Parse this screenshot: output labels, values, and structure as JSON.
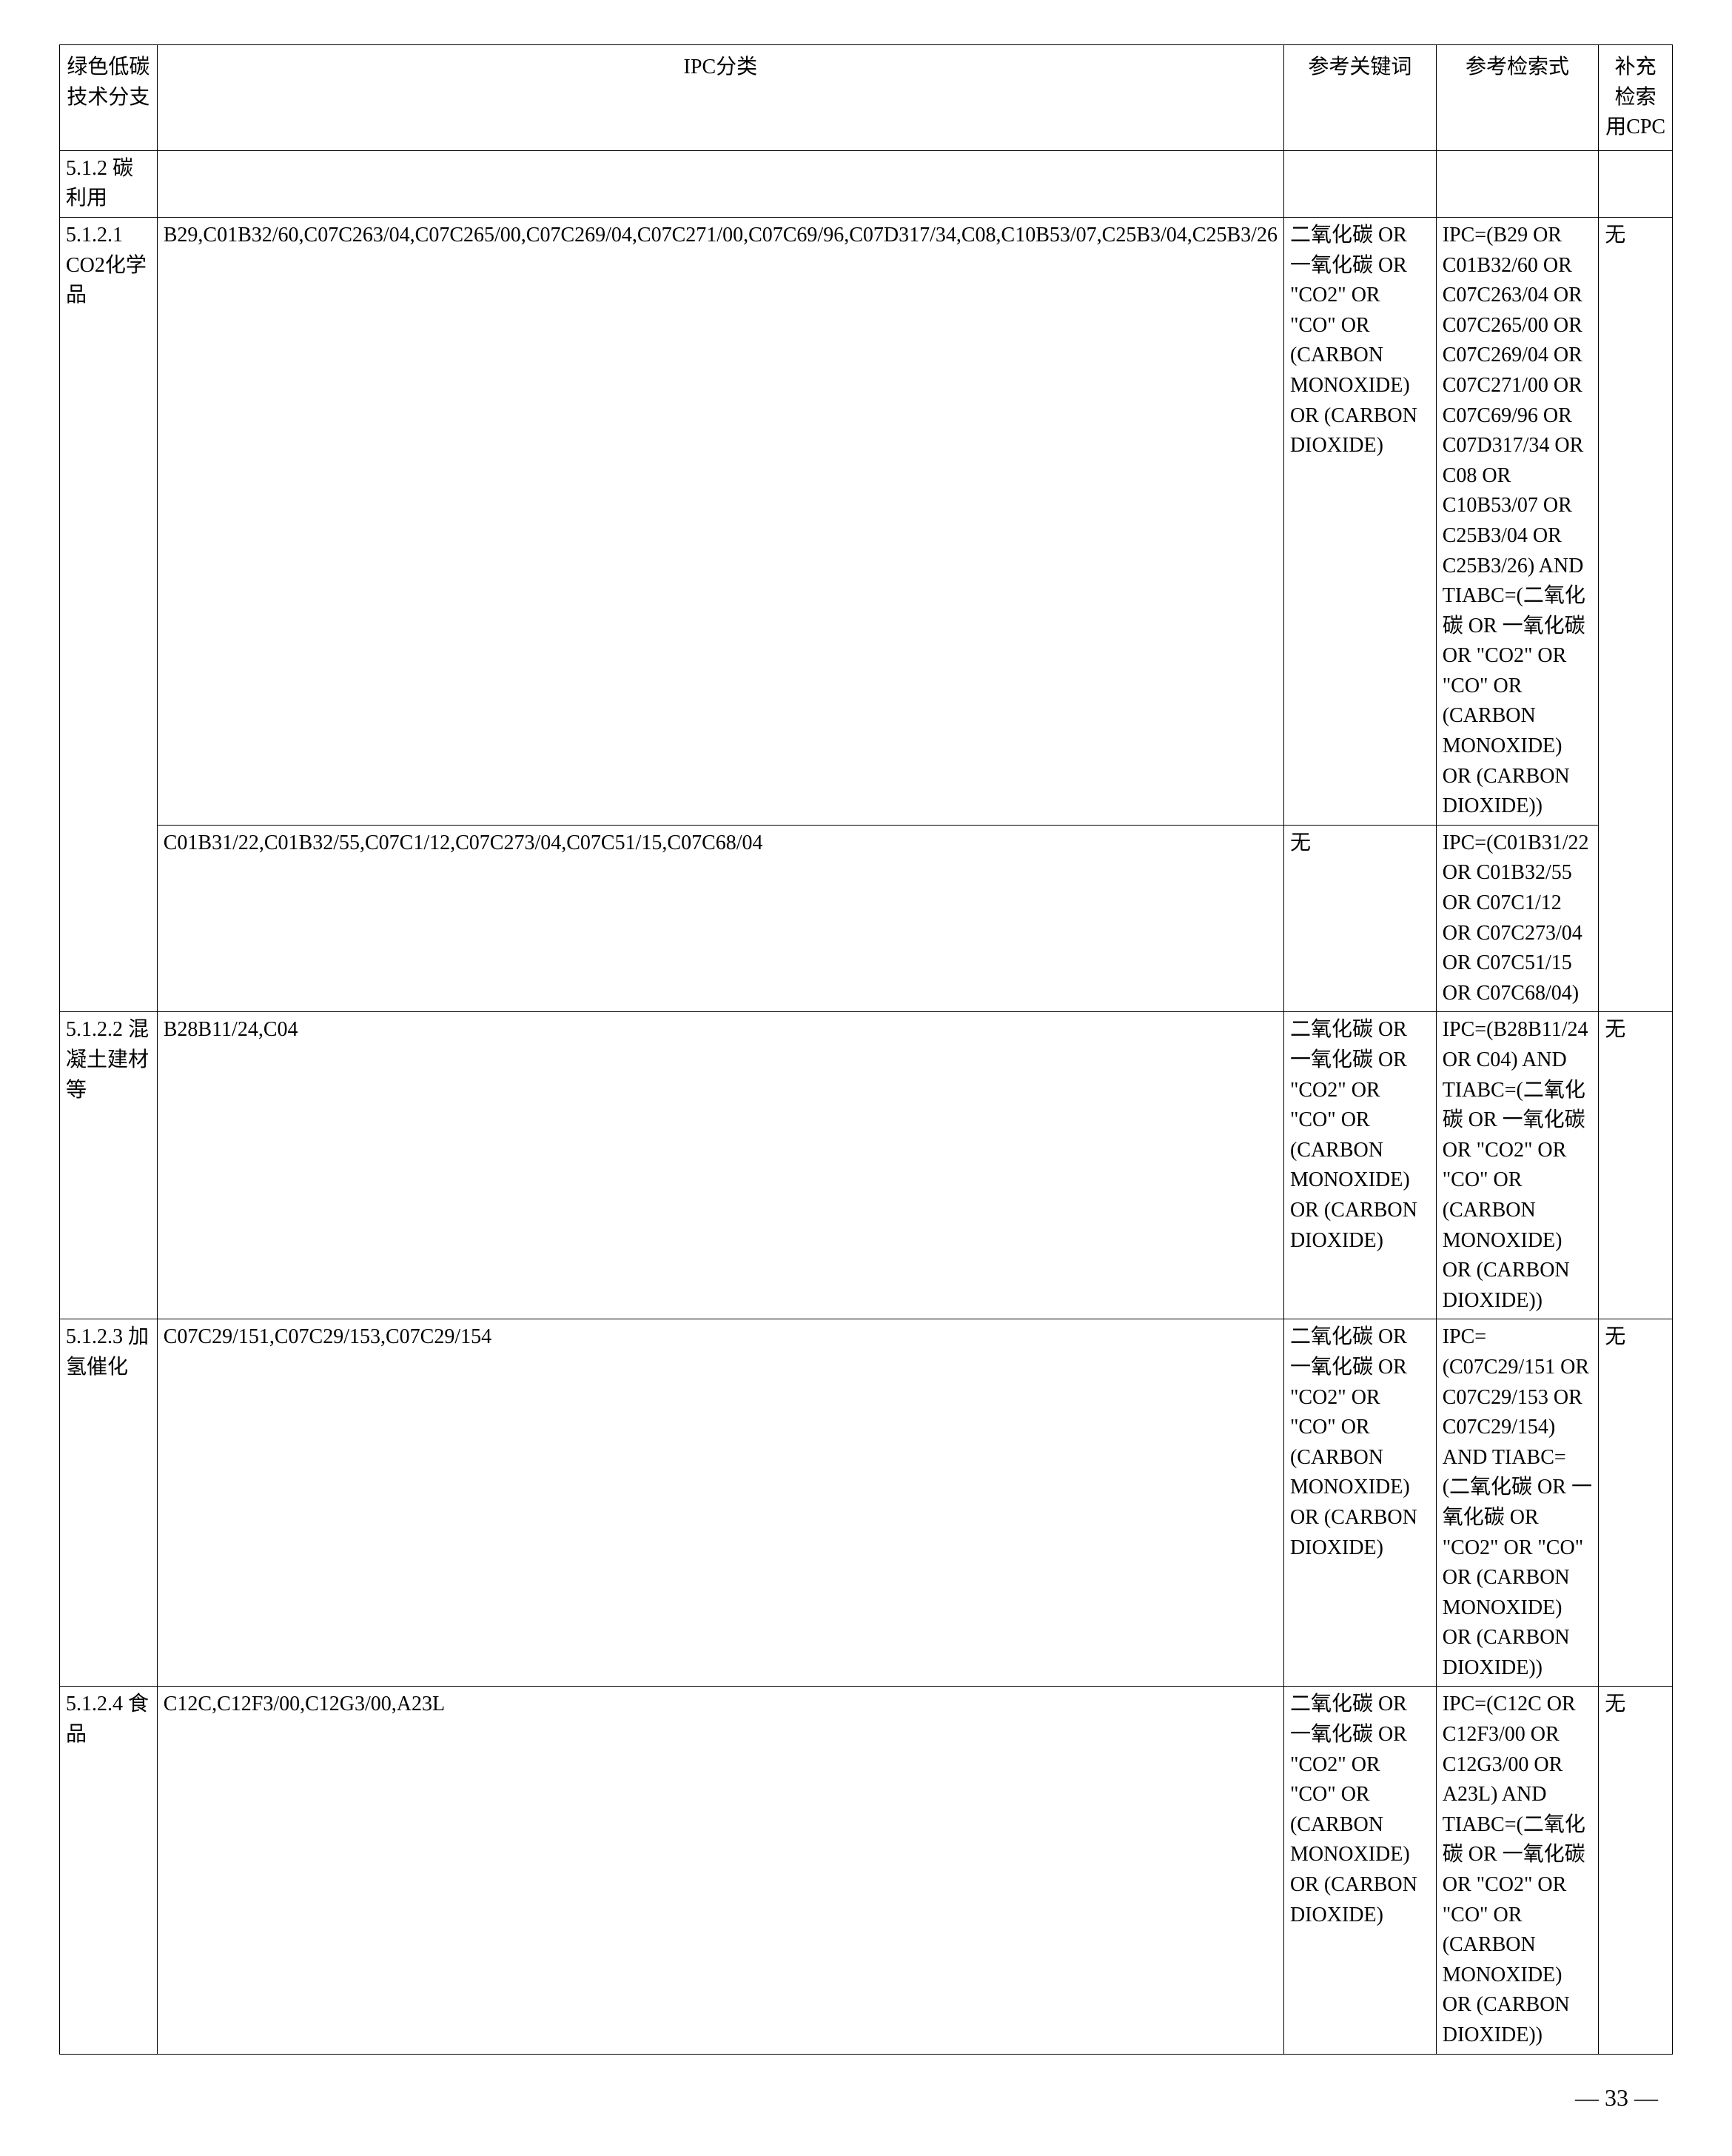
{
  "headers": {
    "branch": "绿色低碳技术分支",
    "ipc": "IPC分类",
    "keyword": "参考关键词",
    "search": "参考检索式",
    "cpc": "补充检索用CPC"
  },
  "section": {
    "id": "5.1.2  碳利用"
  },
  "rows": [
    {
      "branch": "5.1.2.1 CO2化学品",
      "ipc1": "B29,C01B32/60,C07C263/04,C07C265/00,C07C269/04,C07C271/00,C07C69/96,C07D317/34,C08,C10B53/07,C25B3/04,C25B3/26",
      "keyword1": "二氧化碳 OR 一氧化碳 OR \"CO2\" OR \"CO\" OR (CARBON MONOXIDE) OR (CARBON DIOXIDE)",
      "search1": "IPC=(B29 OR C01B32/60 OR C07C263/04 OR C07C265/00 OR C07C269/04 OR C07C271/00 OR C07C69/96 OR C07D317/34 OR C08 OR C10B53/07 OR C25B3/04 OR C25B3/26) AND TIABC=(二氧化碳 OR 一氧化碳 OR \"CO2\" OR \"CO\" OR (CARBON MONOXIDE) OR (CARBON DIOXIDE))",
      "cpc1": "无",
      "ipc2": "C01B31/22,C01B32/55,C07C1/12,C07C273/04,C07C51/15,C07C68/04",
      "keyword2": "无",
      "search2": "IPC=(C01B31/22 OR C01B32/55 OR C07C1/12 OR C07C273/04 OR C07C51/15 OR C07C68/04)"
    },
    {
      "branch": "5.1.2.2 混凝土建材等",
      "ipc": "B28B11/24,C04",
      "keyword": "二氧化碳 OR 一氧化碳 OR \"CO2\" OR \"CO\" OR (CARBON MONOXIDE) OR (CARBON DIOXIDE)",
      "search": "IPC=(B28B11/24 OR C04) AND TIABC=(二氧化碳 OR 一氧化碳 OR \"CO2\" OR \"CO\" OR (CARBON MONOXIDE) OR (CARBON DIOXIDE))",
      "cpc": "无"
    },
    {
      "branch": "5.1.2.3 加氢催化",
      "ipc": "C07C29/151,C07C29/153,C07C29/154",
      "keyword": "二氧化碳 OR 一氧化碳 OR \"CO2\" OR \"CO\" OR (CARBON MONOXIDE) OR (CARBON DIOXIDE)",
      "search": "IPC=(C07C29/151 OR C07C29/153 OR C07C29/154) AND TIABC=(二氧化碳 OR 一氧化碳 OR \"CO2\" OR \"CO\" OR (CARBON MONOXIDE) OR (CARBON DIOXIDE))",
      "cpc": "无"
    },
    {
      "branch": "5.1.2.4 食品",
      "ipc": "C12C,C12F3/00,C12G3/00,A23L",
      "keyword": "二氧化碳 OR 一氧化碳 OR \"CO2\" OR \"CO\" OR (CARBON MONOXIDE) OR (CARBON DIOXIDE)",
      "search": "IPC=(C12C OR C12F3/00 OR C12G3/00 OR A23L) AND TIABC=(二氧化碳 OR 一氧化碳 OR \"CO2\" OR \"CO\" OR (CARBON MONOXIDE) OR (CARBON DIOXIDE))",
      "cpc": "无"
    }
  ],
  "pageNumber": "— 33 —"
}
